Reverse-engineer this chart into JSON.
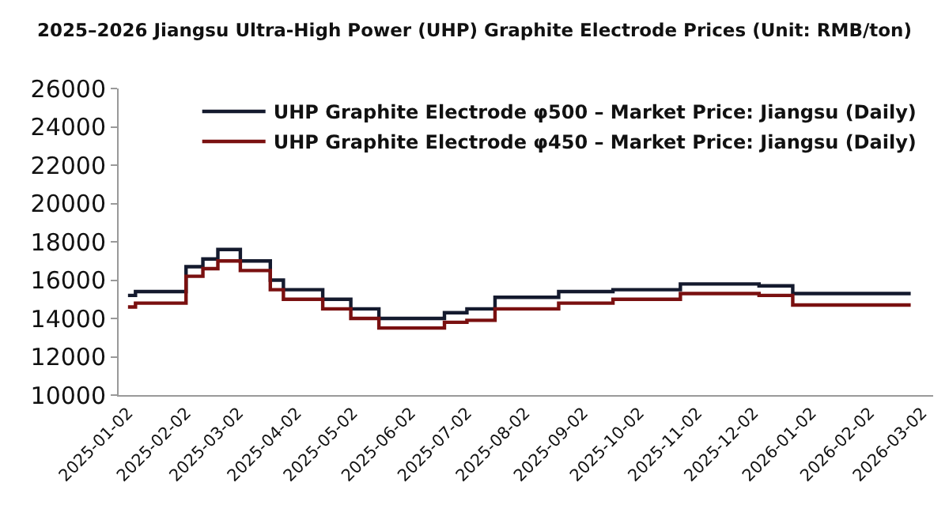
{
  "chart_data": {
    "type": "step",
    "title": "2025–2026 Jiangsu Ultra-High Power (UHP) Graphite Electrode Prices (Unit: RMB/ton)",
    "series": [
      {
        "name": "UHP Graphite Electrode φ500 – Market Price: Jiangsu (Daily)",
        "color": "#141a2e",
        "x": [
          "2025-01-02",
          "2025-01-06",
          "2025-02-02",
          "2025-02-11",
          "2025-02-19",
          "2025-03-03",
          "2025-03-19",
          "2025-03-26",
          "2025-04-16",
          "2025-05-01",
          "2025-05-16",
          "2025-06-20",
          "2025-07-02",
          "2025-07-17",
          "2025-08-20",
          "2025-09-18",
          "2025-10-24",
          "2025-12-05",
          "2025-12-23",
          "2026-02-24"
        ],
        "values": [
          15200,
          15400,
          16700,
          17100,
          17600,
          17000,
          16000,
          15500,
          15000,
          14500,
          14000,
          14300,
          14500,
          15100,
          15400,
          15500,
          15800,
          15700,
          15300,
          15300
        ]
      },
      {
        "name": "UHP Graphite Electrode φ450 – Market Price: Jiangsu (Daily)",
        "color": "#7a1010",
        "x": [
          "2025-01-02",
          "2025-01-06",
          "2025-02-02",
          "2025-02-11",
          "2025-02-19",
          "2025-03-03",
          "2025-03-19",
          "2025-03-26",
          "2025-04-16",
          "2025-05-01",
          "2025-05-16",
          "2025-06-20",
          "2025-07-02",
          "2025-07-17",
          "2025-08-20",
          "2025-09-18",
          "2025-10-24",
          "2025-12-05",
          "2025-12-23",
          "2026-02-24"
        ],
        "values": [
          14600,
          14800,
          16200,
          16600,
          17000,
          16500,
          15500,
          15000,
          14500,
          14000,
          13500,
          13800,
          13900,
          14500,
          14800,
          15000,
          15300,
          15200,
          14700,
          14700
        ]
      }
    ],
    "xlim": [
      "2024-12-28",
      "2026-03-08"
    ],
    "xticks": [
      "2025-01-02",
      "2025-02-02",
      "2025-03-02",
      "2025-04-02",
      "2025-05-02",
      "2025-06-02",
      "2025-07-02",
      "2025-08-02",
      "2025-09-02",
      "2025-10-02",
      "2025-11-02",
      "2025-12-02",
      "2026-01-02",
      "2026-02-02",
      "2026-03-02"
    ],
    "ylim": [
      10000,
      26000
    ],
    "yticks": [
      10000,
      12000,
      14000,
      16000,
      18000,
      20000,
      22000,
      24000,
      26000
    ],
    "grid": false,
    "legend": "top right",
    "marker": "none",
    "line_style": "solid"
  }
}
